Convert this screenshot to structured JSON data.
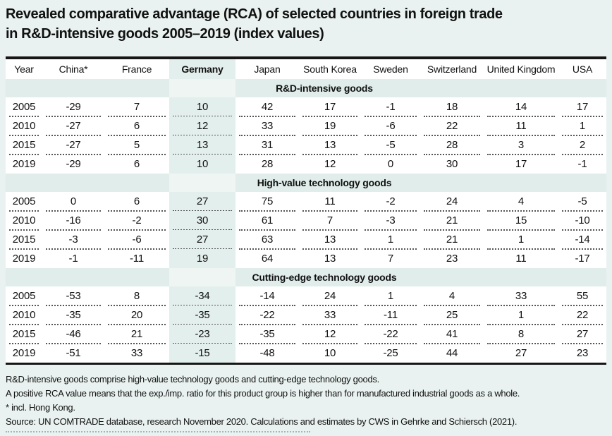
{
  "title": {
    "line1": "Revealed comparative advantage (RCA) of selected countries in foreign trade",
    "line2": "in R&D-intensive goods 2005–2019 (index values)"
  },
  "chart_data": {
    "type": "table",
    "title": "Revealed comparative advantage (RCA) of selected countries in foreign trade in R&D-intensive goods 2005–2019 (index values)",
    "columns": [
      "Year",
      "China*",
      "France",
      "Germany",
      "Japan",
      "South Korea",
      "Sweden",
      "Switzerland",
      "United Kingdom",
      "USA"
    ],
    "highlight_column": "Germany",
    "sections": [
      {
        "name": "R&D-intensive goods",
        "rows": [
          {
            "year": "2005",
            "values": [
              -29,
              7,
              10,
              42,
              17,
              -1,
              18,
              14,
              17
            ]
          },
          {
            "year": "2010",
            "values": [
              -27,
              6,
              12,
              33,
              19,
              -6,
              22,
              11,
              1
            ]
          },
          {
            "year": "2015",
            "values": [
              -27,
              5,
              13,
              31,
              13,
              -5,
              28,
              3,
              2
            ]
          },
          {
            "year": "2019",
            "values": [
              -29,
              6,
              10,
              28,
              12,
              0,
              30,
              17,
              -1
            ]
          }
        ]
      },
      {
        "name": "High-value technology goods",
        "rows": [
          {
            "year": "2005",
            "values": [
              0,
              6,
              27,
              75,
              11,
              -2,
              24,
              4,
              -5
            ]
          },
          {
            "year": "2010",
            "values": [
              -16,
              -2,
              30,
              61,
              7,
              -3,
              21,
              15,
              -10
            ]
          },
          {
            "year": "2015",
            "values": [
              -3,
              -6,
              27,
              63,
              13,
              1,
              21,
              1,
              -14
            ]
          },
          {
            "year": "2019",
            "values": [
              -1,
              -11,
              19,
              64,
              13,
              7,
              23,
              11,
              -17
            ]
          }
        ]
      },
      {
        "name": "Cutting-edge technology goods",
        "rows": [
          {
            "year": "2005",
            "values": [
              -53,
              8,
              -34,
              -14,
              24,
              1,
              4,
              33,
              55
            ]
          },
          {
            "year": "2010",
            "values": [
              -35,
              20,
              -35,
              -22,
              33,
              -11,
              25,
              1,
              22
            ]
          },
          {
            "year": "2015",
            "values": [
              -46,
              21,
              -23,
              -35,
              12,
              -22,
              41,
              8,
              27
            ]
          },
          {
            "year": "2019",
            "values": [
              -51,
              33,
              -15,
              -48,
              10,
              -25,
              44,
              27,
              23
            ]
          }
        ]
      }
    ],
    "notes": [
      "R&D-intensive goods comprise high-value technology goods and cutting-edge technology goods.",
      "A positive RCA value means that the exp./imp. ratio for this product group is higher than for manufactured industrial goods as a whole.",
      "* incl. Hong Kong."
    ],
    "source": "Source: UN COMTRADE database, research November 2020. Calculations and estimates by CWS in Gehrke and Schiersch (2021)."
  },
  "colors": {
    "page_bg": "#e9f2f0",
    "band_bg": "#e0edea",
    "germany_tint": "#e3efec",
    "germany_on_band": "#eef5f2",
    "rule_black": "#161616",
    "dot_color": "#555555"
  }
}
